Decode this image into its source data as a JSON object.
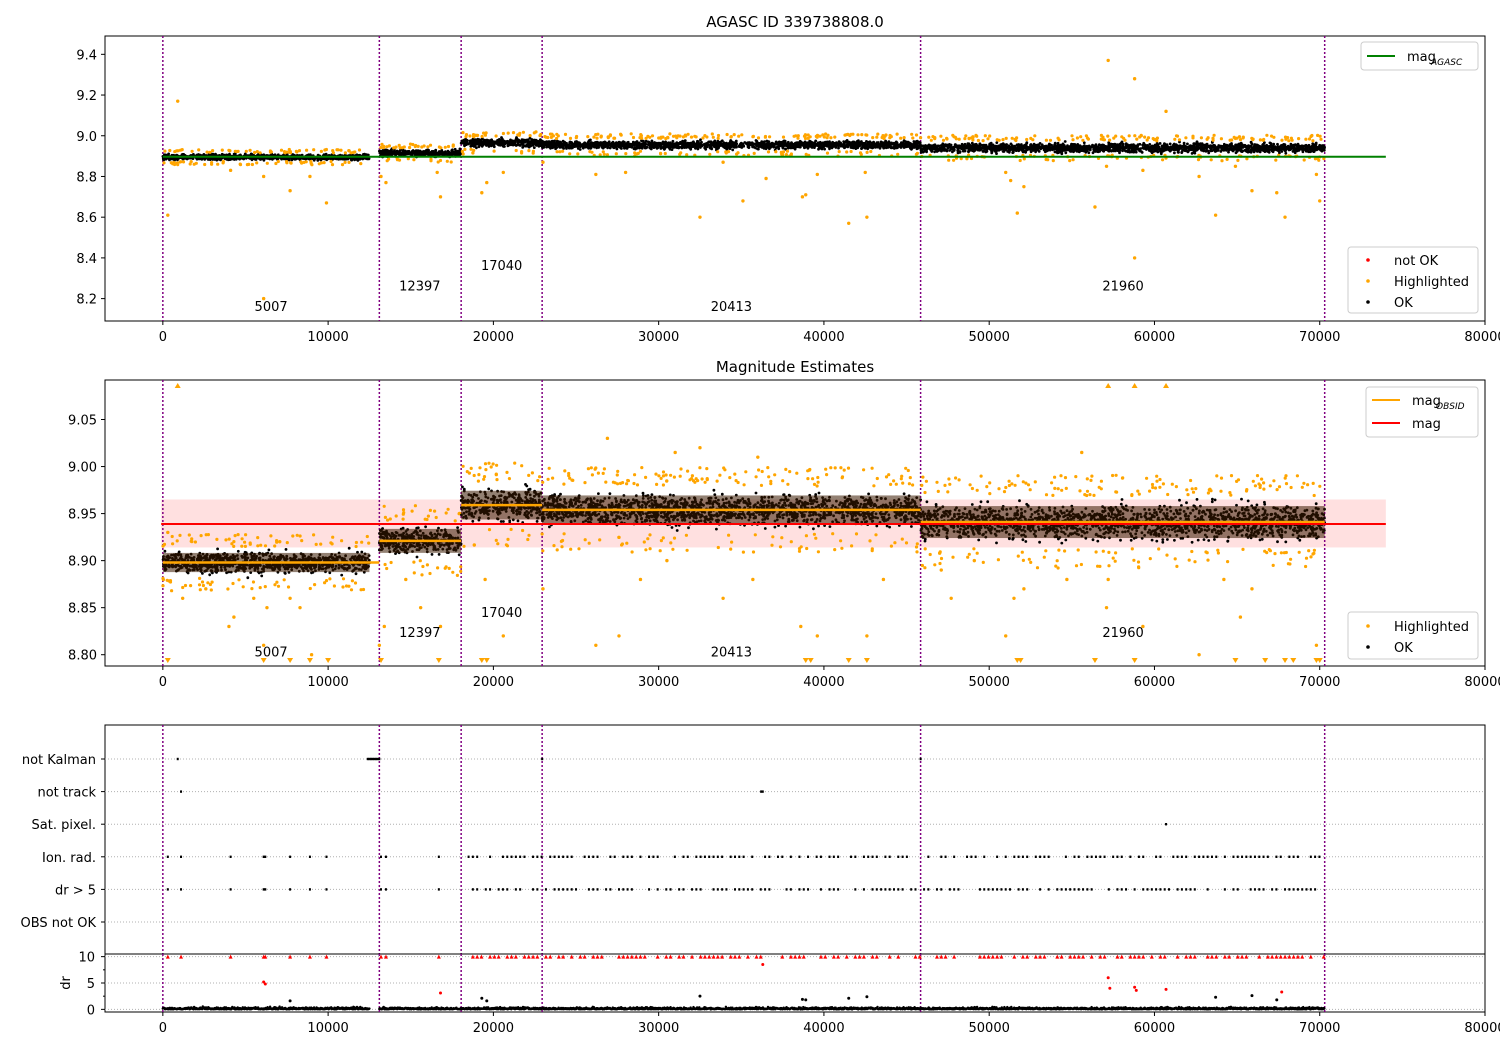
{
  "chart_data": [
    {
      "type": "scatter",
      "title": "AGASC ID 339738808.0",
      "xlim": [
        -3500,
        80000
      ],
      "ylim": [
        8.09,
        9.49
      ],
      "xticks": [
        "0",
        "10000",
        "20000",
        "30000",
        "40000",
        "50000",
        "60000",
        "70000",
        "80000"
      ],
      "yticks": [
        "8.2",
        "8.4",
        "8.6",
        "8.8",
        "9.0",
        "9.2",
        "9.4"
      ],
      "obsid_boundaries": [
        0,
        13100,
        18050,
        22950,
        45850,
        70300
      ],
      "obsid_labels": [
        {
          "text": "5007",
          "x": 6550,
          "y": 8.14
        },
        {
          "text": "12397",
          "x": 15550,
          "y": 8.24
        },
        {
          "text": "17040",
          "x": 20500,
          "y": 8.34
        },
        {
          "text": "20413",
          "x": 34400,
          "y": 8.14
        },
        {
          "text": "21960",
          "x": 58100,
          "y": 8.24
        }
      ],
      "segments": [
        {
          "x0": 0,
          "x1": 12500,
          "mean": 8.895,
          "spread": 0.015
        },
        {
          "x0": 13100,
          "x1": 18050,
          "mean": 8.915,
          "spread": 0.018
        },
        {
          "x0": 18050,
          "x1": 22950,
          "mean": 8.965,
          "spread": 0.022
        },
        {
          "x0": 22950,
          "x1": 45850,
          "mean": 8.955,
          "spread": 0.022
        },
        {
          "x0": 45850,
          "x1": 70300,
          "mean": 8.94,
          "spread": 0.025
        }
      ],
      "reference_line": {
        "name": "mag_AGASC",
        "y": 8.897,
        "x0": 0,
        "x1": 74000,
        "color": "#008000"
      },
      "highlighted_points": [
        [
          300,
          8.61
        ],
        [
          900,
          9.17
        ],
        [
          6100,
          8.2
        ],
        [
          6100,
          8.8
        ],
        [
          7700,
          8.73
        ],
        [
          8900,
          8.8
        ],
        [
          9900,
          8.67
        ],
        [
          4100,
          8.83
        ],
        [
          13200,
          8.8
        ],
        [
          13500,
          8.77
        ],
        [
          16800,
          8.7
        ],
        [
          16600,
          8.82
        ],
        [
          19300,
          8.72
        ],
        [
          19600,
          8.77
        ],
        [
          20600,
          8.82
        ],
        [
          23000,
          8.87
        ],
        [
          26200,
          8.81
        ],
        [
          28000,
          8.82
        ],
        [
          32500,
          8.6
        ],
        [
          33900,
          8.87
        ],
        [
          35100,
          8.68
        ],
        [
          36500,
          8.79
        ],
        [
          38700,
          8.7
        ],
        [
          38900,
          8.71
        ],
        [
          39600,
          8.81
        ],
        [
          41500,
          8.57
        ],
        [
          42600,
          8.6
        ],
        [
          42500,
          8.82
        ],
        [
          51000,
          8.82
        ],
        [
          51300,
          8.78
        ],
        [
          51700,
          8.62
        ],
        [
          52100,
          8.75
        ],
        [
          56400,
          8.65
        ],
        [
          57100,
          8.85
        ],
        [
          57200,
          9.37
        ],
        [
          58800,
          8.4
        ],
        [
          58800,
          9.28
        ],
        [
          59300,
          8.83
        ],
        [
          60700,
          9.12
        ],
        [
          62700,
          8.8
        ],
        [
          63700,
          8.61
        ],
        [
          64900,
          8.85
        ],
        [
          65900,
          8.73
        ],
        [
          67400,
          8.72
        ],
        [
          67900,
          8.6
        ],
        [
          69800,
          8.81
        ],
        [
          70000,
          8.68
        ]
      ],
      "legend": [
        "mag_AGASC",
        "not OK",
        "Highlighted",
        "OK"
      ]
    },
    {
      "type": "scatter",
      "title": "Magnitude Estimates",
      "xlim": [
        -3500,
        80000
      ],
      "ylim": [
        8.788,
        9.092
      ],
      "xticks": [
        "0",
        "10000",
        "20000",
        "30000",
        "40000",
        "50000",
        "60000",
        "70000",
        "80000"
      ],
      "yticks": [
        "8.80",
        "8.85",
        "8.90",
        "8.95",
        "9.00",
        "9.05"
      ],
      "obsid_boundaries": [
        0,
        13100,
        18050,
        22950,
        45850,
        70300
      ],
      "obsid_labels": [
        {
          "text": "5007",
          "x": 6550,
          "y": 8.798
        },
        {
          "text": "12397",
          "x": 15550,
          "y": 8.819
        },
        {
          "text": "17040",
          "x": 20500,
          "y": 8.84
        },
        {
          "text": "20413",
          "x": 34400,
          "y": 8.798
        },
        {
          "text": "21960",
          "x": 58100,
          "y": 8.819
        }
      ],
      "segments": [
        {
          "x0": 0,
          "x1": 12500,
          "mean": 8.898,
          "spread": 0.012
        },
        {
          "x0": 13100,
          "x1": 18050,
          "mean": 8.921,
          "spread": 0.015
        },
        {
          "x0": 18050,
          "x1": 22950,
          "mean": 8.959,
          "spread": 0.018
        },
        {
          "x0": 22950,
          "x1": 45850,
          "mean": 8.954,
          "spread": 0.018
        },
        {
          "x0": 45850,
          "x1": 70300,
          "mean": 8.941,
          "spread": 0.02
        }
      ],
      "mag_obsid": [
        {
          "x0": 0,
          "x1": 13100,
          "y": 8.898
        },
        {
          "x0": 13100,
          "x1": 18050,
          "y": 8.921
        },
        {
          "x0": 18050,
          "x1": 22950,
          "y": 8.959
        },
        {
          "x0": 22950,
          "x1": 45850,
          "y": 8.954
        },
        {
          "x0": 45850,
          "x1": 70300,
          "y": 8.941
        }
      ],
      "mag_line": {
        "name": "mag",
        "y": 8.939,
        "x0": -100,
        "x1": 74000,
        "color": "#ff0000"
      },
      "mag_band": [
        8.914,
        8.965
      ],
      "highlighted_points": [
        [
          300,
          8.93
        ],
        [
          1200,
          8.86
        ],
        [
          2600,
          8.87
        ],
        [
          4000,
          8.83
        ],
        [
          4300,
          8.84
        ],
        [
          5500,
          8.86
        ],
        [
          6100,
          8.81
        ],
        [
          6300,
          8.85
        ],
        [
          7700,
          8.86
        ],
        [
          8300,
          8.85
        ],
        [
          9000,
          8.8
        ],
        [
          13100,
          8.81
        ],
        [
          13400,
          8.83
        ],
        [
          14700,
          8.88
        ],
        [
          15600,
          8.85
        ],
        [
          16800,
          8.83
        ],
        [
          19500,
          8.88
        ],
        [
          20600,
          8.82
        ],
        [
          23000,
          8.87
        ],
        [
          26200,
          8.81
        ],
        [
          27600,
          8.82
        ],
        [
          28900,
          8.88
        ],
        [
          30500,
          8.9
        ],
        [
          33900,
          8.86
        ],
        [
          35700,
          8.88
        ],
        [
          38600,
          8.83
        ],
        [
          39600,
          8.82
        ],
        [
          42600,
          8.82
        ],
        [
          43600,
          8.88
        ],
        [
          47100,
          8.89
        ],
        [
          47700,
          8.86
        ],
        [
          49100,
          8.9
        ],
        [
          51000,
          8.82
        ],
        [
          51500,
          8.86
        ],
        [
          52100,
          8.87
        ],
        [
          54700,
          8.88
        ],
        [
          57100,
          8.85
        ],
        [
          57200,
          8.88
        ],
        [
          59300,
          8.83
        ],
        [
          62700,
          8.8
        ],
        [
          64200,
          8.88
        ],
        [
          65200,
          8.84
        ],
        [
          65900,
          8.87
        ],
        [
          69800,
          8.81
        ],
        [
          26900,
          9.03
        ],
        [
          31000,
          9.015
        ],
        [
          32500,
          9.02
        ],
        [
          55600,
          9.015
        ],
        [
          36000,
          9.01
        ]
      ],
      "arrows_top": [
        900,
        57200,
        58800,
        60700
      ],
      "arrows_bottom": [
        300,
        6100,
        7700,
        8900,
        10000,
        13200,
        16700,
        19300,
        19600,
        38900,
        39200,
        41500,
        42600,
        51700,
        51900,
        56400,
        58800,
        64900,
        66700,
        67900,
        68400,
        69800,
        70000
      ],
      "legend": [
        "mag_OBSID",
        "mag",
        "Highlighted",
        "OK"
      ]
    },
    {
      "type": "scatter",
      "xlim": [
        -3500,
        80000
      ],
      "xticks": [
        "0",
        "10000",
        "20000",
        "30000",
        "40000",
        "50000",
        "60000",
        "70000",
        "80000"
      ],
      "yticks": [
        "not Kalman",
        "not track",
        "Sat. pixel.",
        "Ion. rad.",
        "dr > 5",
        "OBS not OK"
      ],
      "obsid_boundaries": [
        0,
        13100,
        18050,
        22950,
        45850,
        70300
      ],
      "flags": {
        "not Kalman": [
          900,
          12400,
          12500,
          12600,
          12700,
          12800,
          12900,
          13000,
          13100,
          22950,
          45850
        ],
        "not track": [
          1100,
          36200,
          36300
        ],
        "Sat. pixel.": [
          60700
        ],
        "Ion. rad.": [
          300,
          1100,
          4100,
          6100,
          6200,
          7700,
          8900,
          9900,
          13200,
          13500,
          16700
        ],
        "dr > 5": [
          300,
          1100,
          4100,
          6100,
          6200,
          7700,
          8900,
          9900,
          13200,
          13500,
          16700
        ],
        "OBS not OK": []
      },
      "flag_bands": {
        "start": 18500,
        "end": 70300,
        "rows": [
          "Ion. rad.",
          "dr > 5"
        ]
      }
    },
    {
      "type": "scatter",
      "ylabel": "dr",
      "xlim": [
        -3500,
        80000
      ],
      "ylim": [
        -0.5,
        10.5
      ],
      "xticks": [
        "0",
        "10000",
        "20000",
        "30000",
        "40000",
        "50000",
        "60000",
        "70000",
        "80000"
      ],
      "yticks": [
        "0",
        "5",
        "10"
      ],
      "obsid_boundaries": [
        0,
        13100,
        18050,
        22950,
        45850,
        70300
      ],
      "outliers_red": [
        [
          6100,
          5.2
        ],
        [
          6200,
          4.8
        ],
        [
          16800,
          3.1
        ],
        [
          36300,
          8.5
        ],
        [
          57200,
          6
        ],
        [
          57300,
          4
        ],
        [
          58800,
          4.2
        ],
        [
          58900,
          3.6
        ],
        [
          60700,
          3.8
        ],
        [
          67700,
          3.3
        ]
      ],
      "outliers_black": [
        [
          7700,
          1.6
        ],
        [
          19300,
          2.1
        ],
        [
          19600,
          1.6
        ],
        [
          32500,
          2.5
        ],
        [
          38700,
          1.9
        ],
        [
          38900,
          1.8
        ],
        [
          41500,
          2.1
        ],
        [
          42600,
          2.4
        ],
        [
          63700,
          2.3
        ],
        [
          65900,
          2.6
        ],
        [
          67400,
          1.8
        ]
      ]
    }
  ]
}
